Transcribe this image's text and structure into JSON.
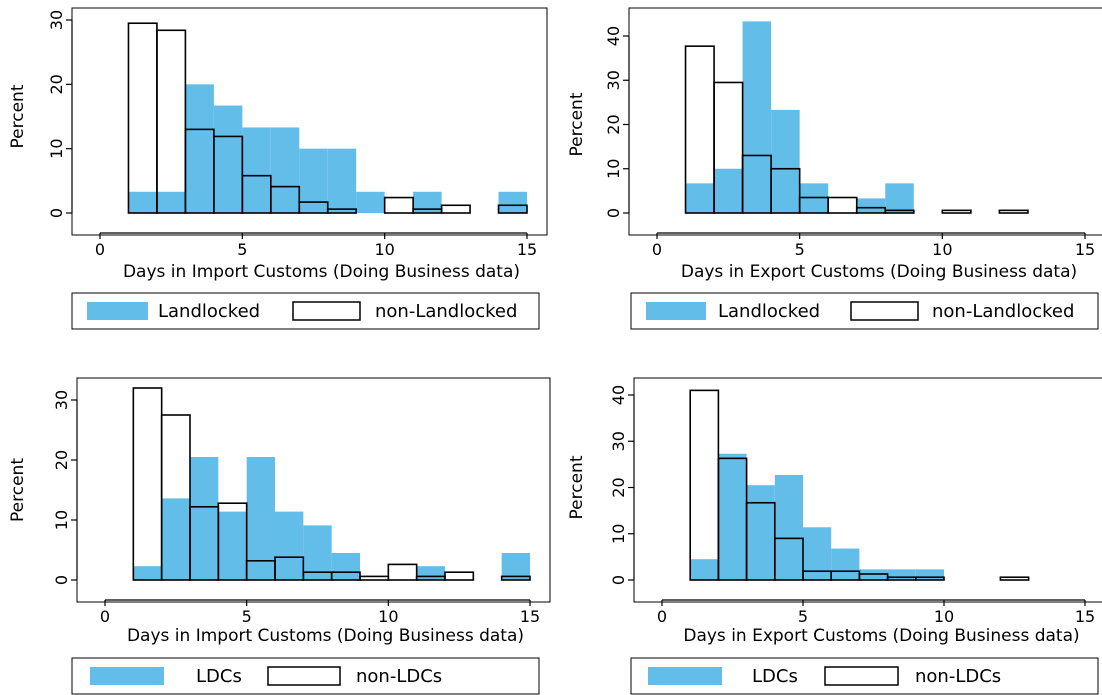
{
  "colors": {
    "blue": "#62bde9",
    "outline": "#000000",
    "hollow": "#ffffff"
  },
  "chart_data": [
    {
      "type": "bar",
      "xlabel": "Days in Import Customs (Doing Business data)",
      "ylabel": "Percent",
      "xlim": [
        0,
        15
      ],
      "ylim": [
        0,
        30
      ],
      "xticks": [
        0,
        5,
        10,
        15
      ],
      "yticks": [
        0,
        10,
        20,
        30
      ],
      "bins": [
        [
          1,
          2
        ],
        [
          2,
          3
        ],
        [
          3,
          4
        ],
        [
          4,
          5
        ],
        [
          5,
          6
        ],
        [
          6,
          7
        ],
        [
          7,
          8
        ],
        [
          8,
          9
        ],
        [
          9,
          10
        ],
        [
          10,
          11
        ],
        [
          11,
          12
        ],
        [
          12,
          13
        ],
        [
          14,
          15
        ]
      ],
      "series": [
        {
          "name": "Landlocked",
          "style": "filled",
          "values": [
            3.3,
            3.3,
            20,
            16.7,
            13.3,
            13.3,
            10,
            10,
            3.3,
            0,
            3.3,
            0,
            3.3
          ]
        },
        {
          "name": "non-Landlocked",
          "style": "hollow",
          "values": [
            29.5,
            28.4,
            13,
            11.9,
            5.8,
            4.1,
            1.7,
            0.6,
            0,
            2.4,
            0.6,
            1.2,
            1.2
          ]
        }
      ],
      "legend": {
        "position": "bottom",
        "items": [
          "Landlocked",
          "non-Landlocked"
        ]
      }
    },
    {
      "type": "bar",
      "xlabel": "Days in Export Customs (Doing Business data)",
      "ylabel": "Percent",
      "xlim": [
        0,
        15
      ],
      "ylim": [
        0,
        40
      ],
      "xticks": [
        0,
        5,
        10,
        15
      ],
      "yticks": [
        0,
        10,
        20,
        30,
        40
      ],
      "bins": [
        [
          1,
          2
        ],
        [
          2,
          3
        ],
        [
          3,
          4
        ],
        [
          4,
          5
        ],
        [
          5,
          6
        ],
        [
          6,
          7
        ],
        [
          7,
          8
        ],
        [
          8,
          9
        ],
        [
          10,
          11
        ],
        [
          12,
          13
        ]
      ],
      "series": [
        {
          "name": "Landlocked",
          "style": "filled",
          "values": [
            6.7,
            10,
            43.3,
            23.3,
            6.7,
            0,
            3.3,
            6.7,
            0,
            0
          ]
        },
        {
          "name": "non-Landlocked",
          "style": "hollow",
          "values": [
            37.7,
            29.5,
            13,
            10,
            3.5,
            3.5,
            1.2,
            0.6,
            0.6,
            0.6
          ]
        }
      ],
      "legend": {
        "position": "bottom",
        "items": [
          "Landlocked",
          "non-Landlocked"
        ]
      }
    },
    {
      "type": "bar",
      "xlabel": "Days in Import Customs (Doing Business data)",
      "ylabel": "Percent",
      "xlim": [
        0,
        15
      ],
      "ylim": [
        0,
        30
      ],
      "xticks": [
        0,
        5,
        10,
        15
      ],
      "yticks": [
        0,
        10,
        20,
        30
      ],
      "bins": [
        [
          1,
          2
        ],
        [
          2,
          3
        ],
        [
          3,
          4
        ],
        [
          4,
          5
        ],
        [
          5,
          6
        ],
        [
          6,
          7
        ],
        [
          7,
          8
        ],
        [
          8,
          9
        ],
        [
          9,
          10
        ],
        [
          10,
          11
        ],
        [
          11,
          12
        ],
        [
          12,
          13
        ],
        [
          14,
          15
        ]
      ],
      "series": [
        {
          "name": "LDCs",
          "style": "filled",
          "values": [
            2.3,
            13.6,
            20.5,
            11.4,
            20.5,
            11.4,
            9.1,
            4.5,
            0,
            0,
            2.3,
            0,
            4.5
          ]
        },
        {
          "name": "non-LDCs",
          "style": "hollow",
          "values": [
            32,
            27.5,
            12.2,
            12.8,
            3.2,
            3.8,
            1.3,
            1.3,
            0.6,
            2.6,
            0.6,
            1.3,
            0.6
          ]
        }
      ],
      "legend": {
        "position": "bottom",
        "items": [
          "LDCs",
          "non-LDCs"
        ]
      }
    },
    {
      "type": "bar",
      "xlabel": "Days in Export Customs (Doing Business data)",
      "ylabel": "Percent",
      "xlim": [
        0,
        15
      ],
      "ylim": [
        0,
        40
      ],
      "xticks": [
        0,
        5,
        10,
        15
      ],
      "yticks": [
        0,
        10,
        20,
        30,
        40
      ],
      "bins": [
        [
          1,
          2
        ],
        [
          2,
          3
        ],
        [
          3,
          4
        ],
        [
          4,
          5
        ],
        [
          5,
          6
        ],
        [
          6,
          7
        ],
        [
          7,
          8
        ],
        [
          8,
          9
        ],
        [
          9,
          10
        ],
        [
          12,
          13
        ]
      ],
      "series": [
        {
          "name": "LDCs",
          "style": "filled",
          "values": [
            4.5,
            27.3,
            20.5,
            22.7,
            11.4,
            6.8,
            2.3,
            2.3,
            2.3,
            0
          ]
        },
        {
          "name": "non-LDCs",
          "style": "hollow",
          "values": [
            41,
            26.3,
            16.7,
            9,
            1.9,
            1.9,
            1.3,
            0.6,
            0.6,
            0.6
          ]
        }
      ],
      "legend": {
        "position": "bottom",
        "items": [
          "LDCs",
          "non-LDCs"
        ]
      }
    }
  ]
}
